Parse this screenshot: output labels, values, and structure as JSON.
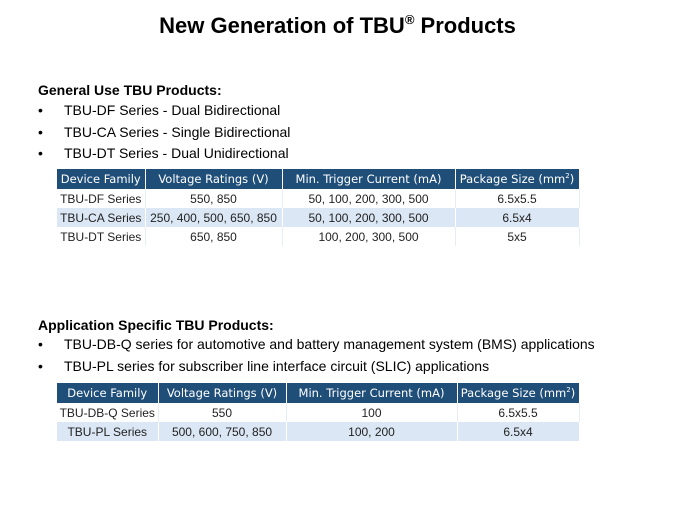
{
  "title": {
    "text": "New Generation of TBU",
    "sup": "®",
    "suffix": " Products"
  },
  "general": {
    "heading": "General Use TBU Products:",
    "bullets": [
      "TBU-DF Series - Dual Bidirectional",
      "TBU-CA Series - Single Bidirectional",
      "TBU-DT Series - Dual Unidirectional"
    ],
    "table": {
      "headers": [
        "Device Family",
        "Voltage Ratings (V)",
        "Min. Trigger Current (mA)",
        "Package Size (mm",
        "2",
        ")"
      ],
      "rows": [
        [
          "TBU-DF Series",
          "550, 850",
          "50, 100, 200, 300, 500",
          "6.5x5.5"
        ],
        [
          "TBU-CA Series",
          "250, 400, 500, 650, 850",
          "50, 100, 200, 300, 500",
          "6.5x4"
        ],
        [
          "TBU-DT Series",
          "650, 850",
          "100, 200, 300, 500",
          "5x5"
        ]
      ]
    }
  },
  "application": {
    "heading": "Application  Specific TBU Products:",
    "bullets": [
      "TBU-DB-Q series for automotive and battery management system (BMS) applications",
      "TBU-PL series for subscriber line interface circuit (SLIC) applications"
    ],
    "table": {
      "headers": [
        "Device Family",
        "Voltage Ratings (V)",
        "Min. Trigger Current (mA)",
        "Package Size (mm",
        "2",
        ")"
      ],
      "rows": [
        [
          "TBU-DB-Q Series",
          "550",
          "100",
          "6.5x5.5"
        ],
        [
          "TBU-PL Series",
          "500, 600, 750, 850",
          "100, 200",
          "6.5x4"
        ]
      ]
    }
  },
  "bullet_glyph": "•"
}
